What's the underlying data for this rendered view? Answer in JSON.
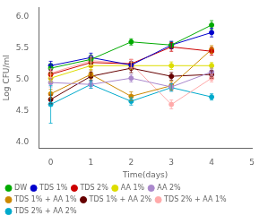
{
  "chart_data": {
    "type": "line",
    "xlabel": "Time(days)",
    "ylabel": "Log CFU/ml",
    "x": [
      0,
      1,
      2,
      3,
      4
    ],
    "xlim": [
      -0.3,
      5
    ],
    "xticks": [
      0,
      1,
      2,
      3,
      4,
      5
    ],
    "ylim": [
      3.9,
      6.15
    ],
    "yticks": [
      {
        "value": 4.0,
        "label": "4.0"
      },
      4.5,
      {
        "value": 5.0,
        "label": "5.0"
      },
      5.5,
      {
        "value": 6.0,
        "label": "6.0"
      }
    ],
    "grid": false,
    "legend": "lower left",
    "marker": "circle",
    "series": [
      {
        "name": "DW",
        "color": "#00aa00",
        "values": [
          5.18,
          5.32,
          5.6,
          5.55,
          5.87
        ],
        "errors": [
          0.07,
          0.07,
          0.05,
          0.05,
          0.07
        ]
      },
      {
        "name": "TDS 1%",
        "color": "#0000cc",
        "values": [
          5.22,
          5.35,
          5.23,
          5.55,
          5.75
        ],
        "errors": [
          0.07,
          0.07,
          0.06,
          0.06,
          0.07
        ]
      },
      {
        "name": "TDS 2%",
        "color": "#cc0000",
        "values": [
          5.08,
          5.27,
          5.25,
          5.52,
          5.45
        ],
        "errors": [
          0.07,
          0.07,
          0.07,
          0.07,
          0.06
        ]
      },
      {
        "name": "AA 1%",
        "color": "#dddd00",
        "values": [
          5.02,
          5.22,
          5.22,
          5.22,
          5.22
        ],
        "errors": [
          0.06,
          0.06,
          0.06,
          0.06,
          0.05
        ]
      },
      {
        "name": "AA 2%",
        "color": "#aa88cc",
        "values": [
          4.95,
          4.92,
          5.02,
          4.88,
          5.12
        ],
        "errors": [
          0.07,
          0.06,
          0.06,
          0.06,
          0.06
        ]
      },
      {
        "name": "TDS 1% + AA 1%",
        "color": "#cc8800",
        "values": [
          4.77,
          5.08,
          4.73,
          4.9,
          5.48
        ],
        "errors": [
          0.07,
          0.07,
          0.07,
          0.07,
          0.06
        ]
      },
      {
        "name": "TDS 1% + AA 2%",
        "color": "#660000",
        "values": [
          4.68,
          5.05,
          5.18,
          5.05,
          5.08
        ],
        "errors": [
          0.07,
          0.07,
          0.07,
          0.06,
          0.06
        ]
      },
      {
        "name": "TDS 2% + AA 1%",
        "color": "#ffaaaa",
        "values": [
          5.1,
          5.3,
          5.25,
          4.6,
          5.02
        ],
        "errors": [
          0.07,
          0.07,
          0.07,
          0.07,
          0.06
        ]
      },
      {
        "name": "TDS 2% + AA 2%",
        "color": "#00aacc",
        "values": [
          4.6,
          4.92,
          4.65,
          4.87,
          4.72
        ],
        "errors": [
          0.3,
          0.06,
          0.06,
          0.06,
          0.05
        ]
      }
    ]
  }
}
